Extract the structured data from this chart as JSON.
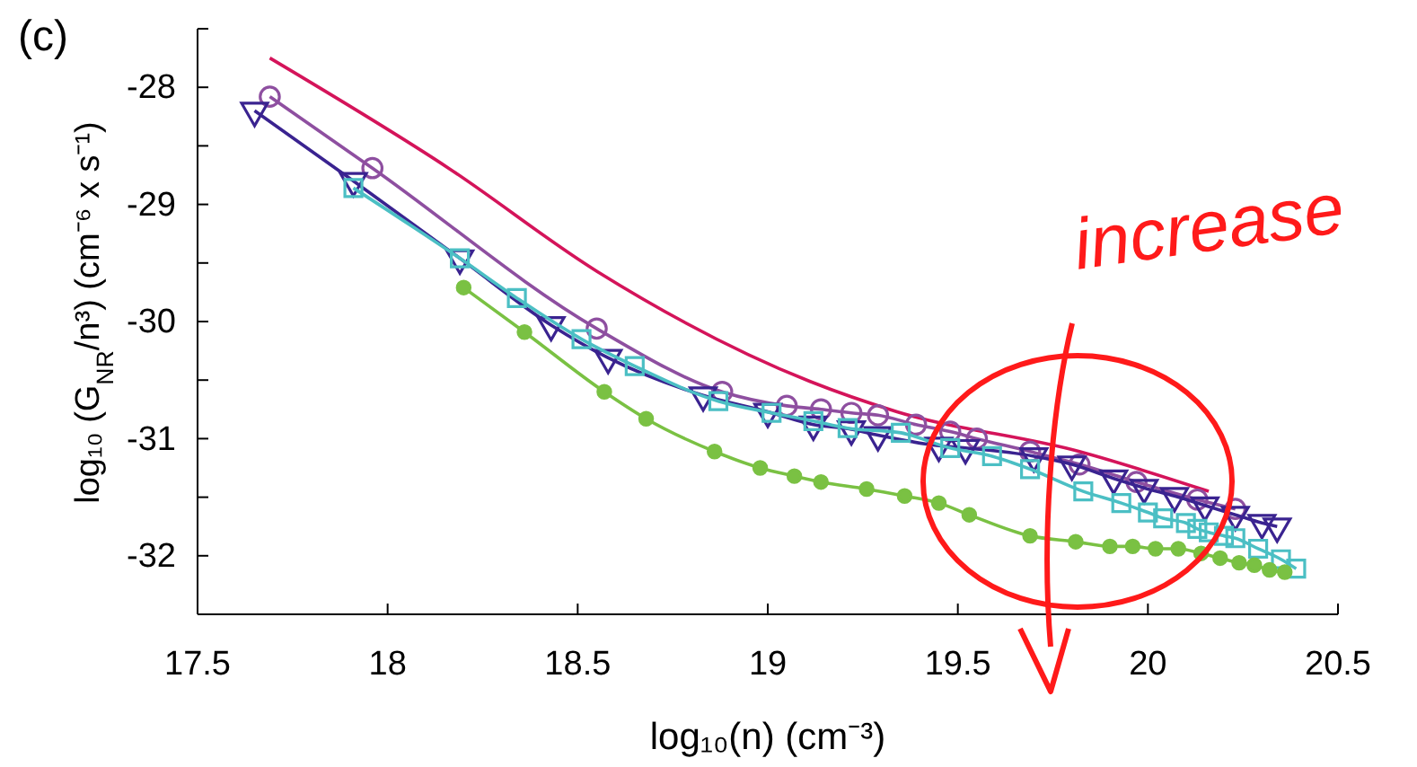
{
  "chart_data": {
    "type": "line",
    "xlabel": "log₁₀(n) (cm⁻³)",
    "ylabel": "log₁₀ (G$_{NR}$/n³) (cm⁻⁶ x s⁻¹)",
    "annotations": [
      "(c)",
      "increase"
    ],
    "xlim": [
      17.5,
      20.5
    ],
    "xticks": [
      17.5,
      18,
      18.5,
      19,
      19.5,
      20,
      20.5
    ],
    "ylim": [
      -32.5,
      -27.5
    ],
    "yticks": [
      {
        "value": -32.5,
        "label": null
      },
      -32,
      {
        "value": -31.5,
        "label": null
      },
      -31,
      {
        "value": -30.5,
        "label": null
      },
      -30,
      {
        "value": -29.5,
        "label": null
      },
      -29,
      {
        "value": -28.5,
        "label": null
      },
      -28,
      {
        "value": -27.5,
        "label": null
      }
    ],
    "grid": false,
    "series": [
      {
        "color": "#d4145a",
        "marker": "none",
        "x": [
          17.69,
          18.16,
          18.55,
          19.11,
          19.34,
          19.82,
          20.16
        ],
        "values": [
          -27.75,
          -28.69,
          -29.57,
          -30.51,
          -30.77,
          -31.11,
          -31.45
        ]
      },
      {
        "color": "#8e4fa0",
        "marker": "circle",
        "x": [
          17.69,
          17.96,
          18.55,
          18.88,
          19.05,
          19.14,
          19.22,
          19.29,
          19.39,
          19.48,
          19.55,
          19.69,
          19.82,
          19.97,
          20.13,
          20.23
        ],
        "values": [
          -28.08,
          -28.69,
          -30.06,
          -30.6,
          -30.72,
          -30.75,
          -30.78,
          -30.8,
          -30.88,
          -30.94,
          -31.0,
          -31.11,
          -31.22,
          -31.37,
          -31.52,
          -31.6
        ]
      },
      {
        "color": "#3a2390",
        "marker": "triangle",
        "x": [
          17.65,
          17.91,
          18.19,
          18.43,
          18.58,
          18.83,
          19.0,
          19.12,
          19.22,
          19.29,
          19.45,
          19.52,
          19.7,
          19.8,
          19.91,
          19.99,
          20.07,
          20.15,
          20.23,
          20.3,
          20.34
        ],
        "values": [
          -28.2,
          -28.8,
          -29.46,
          -30.03,
          -30.31,
          -30.63,
          -30.77,
          -30.88,
          -30.92,
          -30.97,
          -31.06,
          -31.08,
          -31.15,
          -31.22,
          -31.34,
          -31.42,
          -31.49,
          -31.57,
          -31.65,
          -31.72,
          -31.75
        ]
      },
      {
        "color": "#4bbfc4",
        "marker": "square",
        "x": [
          17.91,
          18.19,
          18.34,
          18.51,
          18.65,
          18.87,
          19.01,
          19.12,
          19.21,
          19.35,
          19.48,
          19.59,
          19.69,
          19.83,
          19.93,
          20.0,
          20.04,
          20.1,
          20.13,
          20.16,
          20.2,
          20.23,
          20.29,
          20.35,
          20.39
        ],
        "values": [
          -28.86,
          -29.46,
          -29.8,
          -30.15,
          -30.38,
          -30.68,
          -30.78,
          -30.85,
          -30.91,
          -30.95,
          -31.08,
          -31.15,
          -31.26,
          -31.45,
          -31.55,
          -31.63,
          -31.68,
          -31.72,
          -31.77,
          -31.8,
          -31.83,
          -31.85,
          -31.94,
          -32.03,
          -32.11
        ]
      },
      {
        "color": "#7ac143",
        "marker": "filled-circle",
        "x": [
          18.2,
          18.36,
          18.57,
          18.68,
          18.86,
          18.98,
          19.07,
          19.14,
          19.26,
          19.36,
          19.45,
          19.53,
          19.69,
          19.81,
          19.9,
          19.96,
          20.02,
          20.08,
          20.14,
          20.19,
          20.24,
          20.28,
          20.32,
          20.36
        ],
        "values": [
          -29.71,
          -30.09,
          -30.6,
          -30.83,
          -31.11,
          -31.25,
          -31.32,
          -31.37,
          -31.43,
          -31.49,
          -31.55,
          -31.65,
          -31.83,
          -31.88,
          -31.92,
          -31.92,
          -31.94,
          -31.94,
          -31.98,
          -32.02,
          -32.06,
          -32.08,
          -32.12,
          -32.14
        ]
      }
    ]
  }
}
